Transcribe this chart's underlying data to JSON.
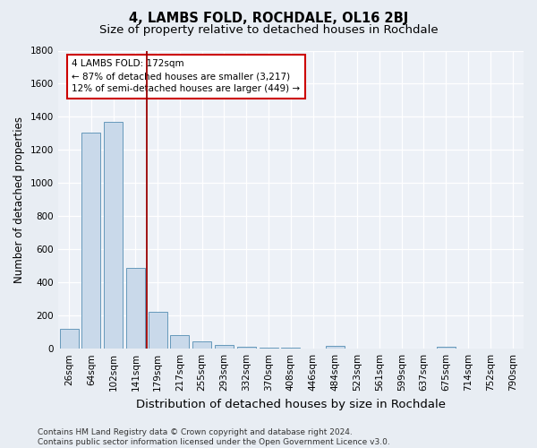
{
  "title": "4, LAMBS FOLD, ROCHDALE, OL16 2BJ",
  "subtitle": "Size of property relative to detached houses in Rochdale",
  "xlabel": "Distribution of detached houses by size in Rochdale",
  "ylabel": "Number of detached properties",
  "bar_labels": [
    "26sqm",
    "64sqm",
    "102sqm",
    "141sqm",
    "179sqm",
    "217sqm",
    "255sqm",
    "293sqm",
    "332sqm",
    "370sqm",
    "408sqm",
    "446sqm",
    "484sqm",
    "523sqm",
    "561sqm",
    "599sqm",
    "637sqm",
    "675sqm",
    "714sqm",
    "752sqm",
    "790sqm"
  ],
  "bar_values": [
    120,
    1305,
    1370,
    490,
    225,
    80,
    45,
    20,
    12,
    8,
    5,
    3,
    18,
    2,
    2,
    2,
    2,
    12,
    2,
    2,
    2
  ],
  "bar_color": "#c9d9ea",
  "bar_edge_color": "#6699bb",
  "vline_index": 3.5,
  "vline_color": "#990000",
  "annotation_line1": "4 LAMBS FOLD: 172sqm",
  "annotation_line2": "← 87% of detached houses are smaller (3,217)",
  "annotation_line3": "12% of semi-detached houses are larger (449) →",
  "annotation_box_color": "#ffffff",
  "annotation_box_edge": "#cc0000",
  "ylim": [
    0,
    1800
  ],
  "yticks": [
    0,
    200,
    400,
    600,
    800,
    1000,
    1200,
    1400,
    1600,
    1800
  ],
  "footer": "Contains HM Land Registry data © Crown copyright and database right 2024.\nContains public sector information licensed under the Open Government Licence v3.0.",
  "bg_color": "#e8edf3",
  "plot_bg_color": "#edf1f7",
  "title_fontsize": 10.5,
  "subtitle_fontsize": 9.5,
  "axis_label_fontsize": 8.5,
  "tick_fontsize": 7.5,
  "annotation_fontsize": 7.5,
  "footer_fontsize": 6.5
}
